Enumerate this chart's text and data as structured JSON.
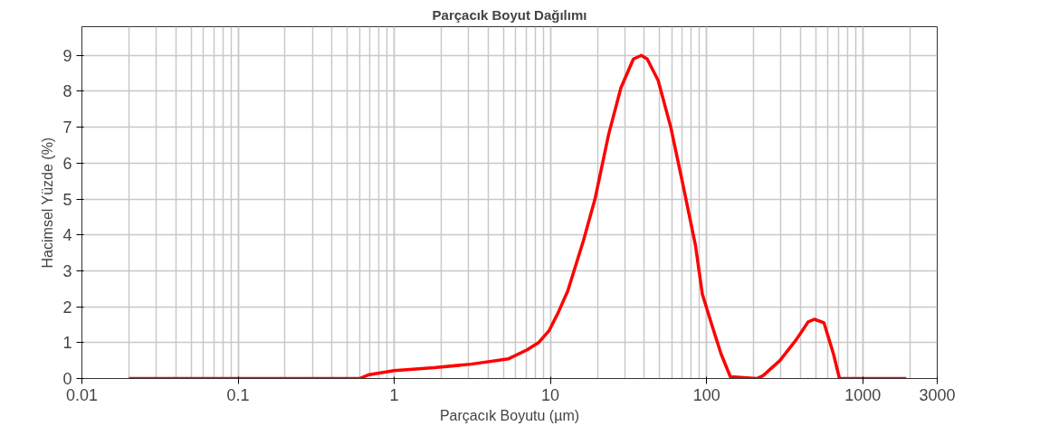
{
  "chart_data": {
    "type": "line",
    "title": "Parçacık Boyut Dağılımı",
    "xlabel": "Parçacık Boyutu (µm)",
    "ylabel": "Hacimsel Yüzde (%)",
    "log": "x",
    "xlim": [
      0.01,
      3000
    ],
    "xticks": [
      0.01,
      0.1,
      1,
      10,
      100,
      1000,
      3000
    ],
    "ylim": [
      0,
      9.8
    ],
    "yticks": [
      0,
      1,
      2,
      3,
      4,
      5,
      6,
      7,
      8,
      9
    ],
    "grid": true,
    "marker": "none",
    "line_style": "solid",
    "series": [
      {
        "color": "#ff0000",
        "x": [
          0.02,
          0.6,
          0.68,
          1,
          1.8,
          3.1,
          5.4,
          7.1,
          8.4,
          9.8,
          11.2,
          12.9,
          16.3,
          19.3,
          23.6,
          28.3,
          34,
          38.2,
          41.7,
          49,
          59,
          71,
          85,
          94,
          108,
          124,
          142,
          210,
          230,
          295,
          375,
          448,
          490,
          565,
          650,
          710,
          1900
        ],
        "values": [
          0,
          0,
          0.1,
          0.22,
          0.3,
          0.4,
          0.55,
          0.8,
          1.0,
          1.33,
          1.83,
          2.43,
          3.85,
          5.0,
          6.8,
          8.1,
          8.9,
          9.0,
          8.9,
          8.3,
          7.0,
          5.35,
          3.7,
          2.35,
          1.5,
          0.68,
          0.05,
          0,
          0.08,
          0.5,
          1.08,
          1.58,
          1.65,
          1.55,
          0.68,
          0,
          0
        ]
      }
    ]
  }
}
